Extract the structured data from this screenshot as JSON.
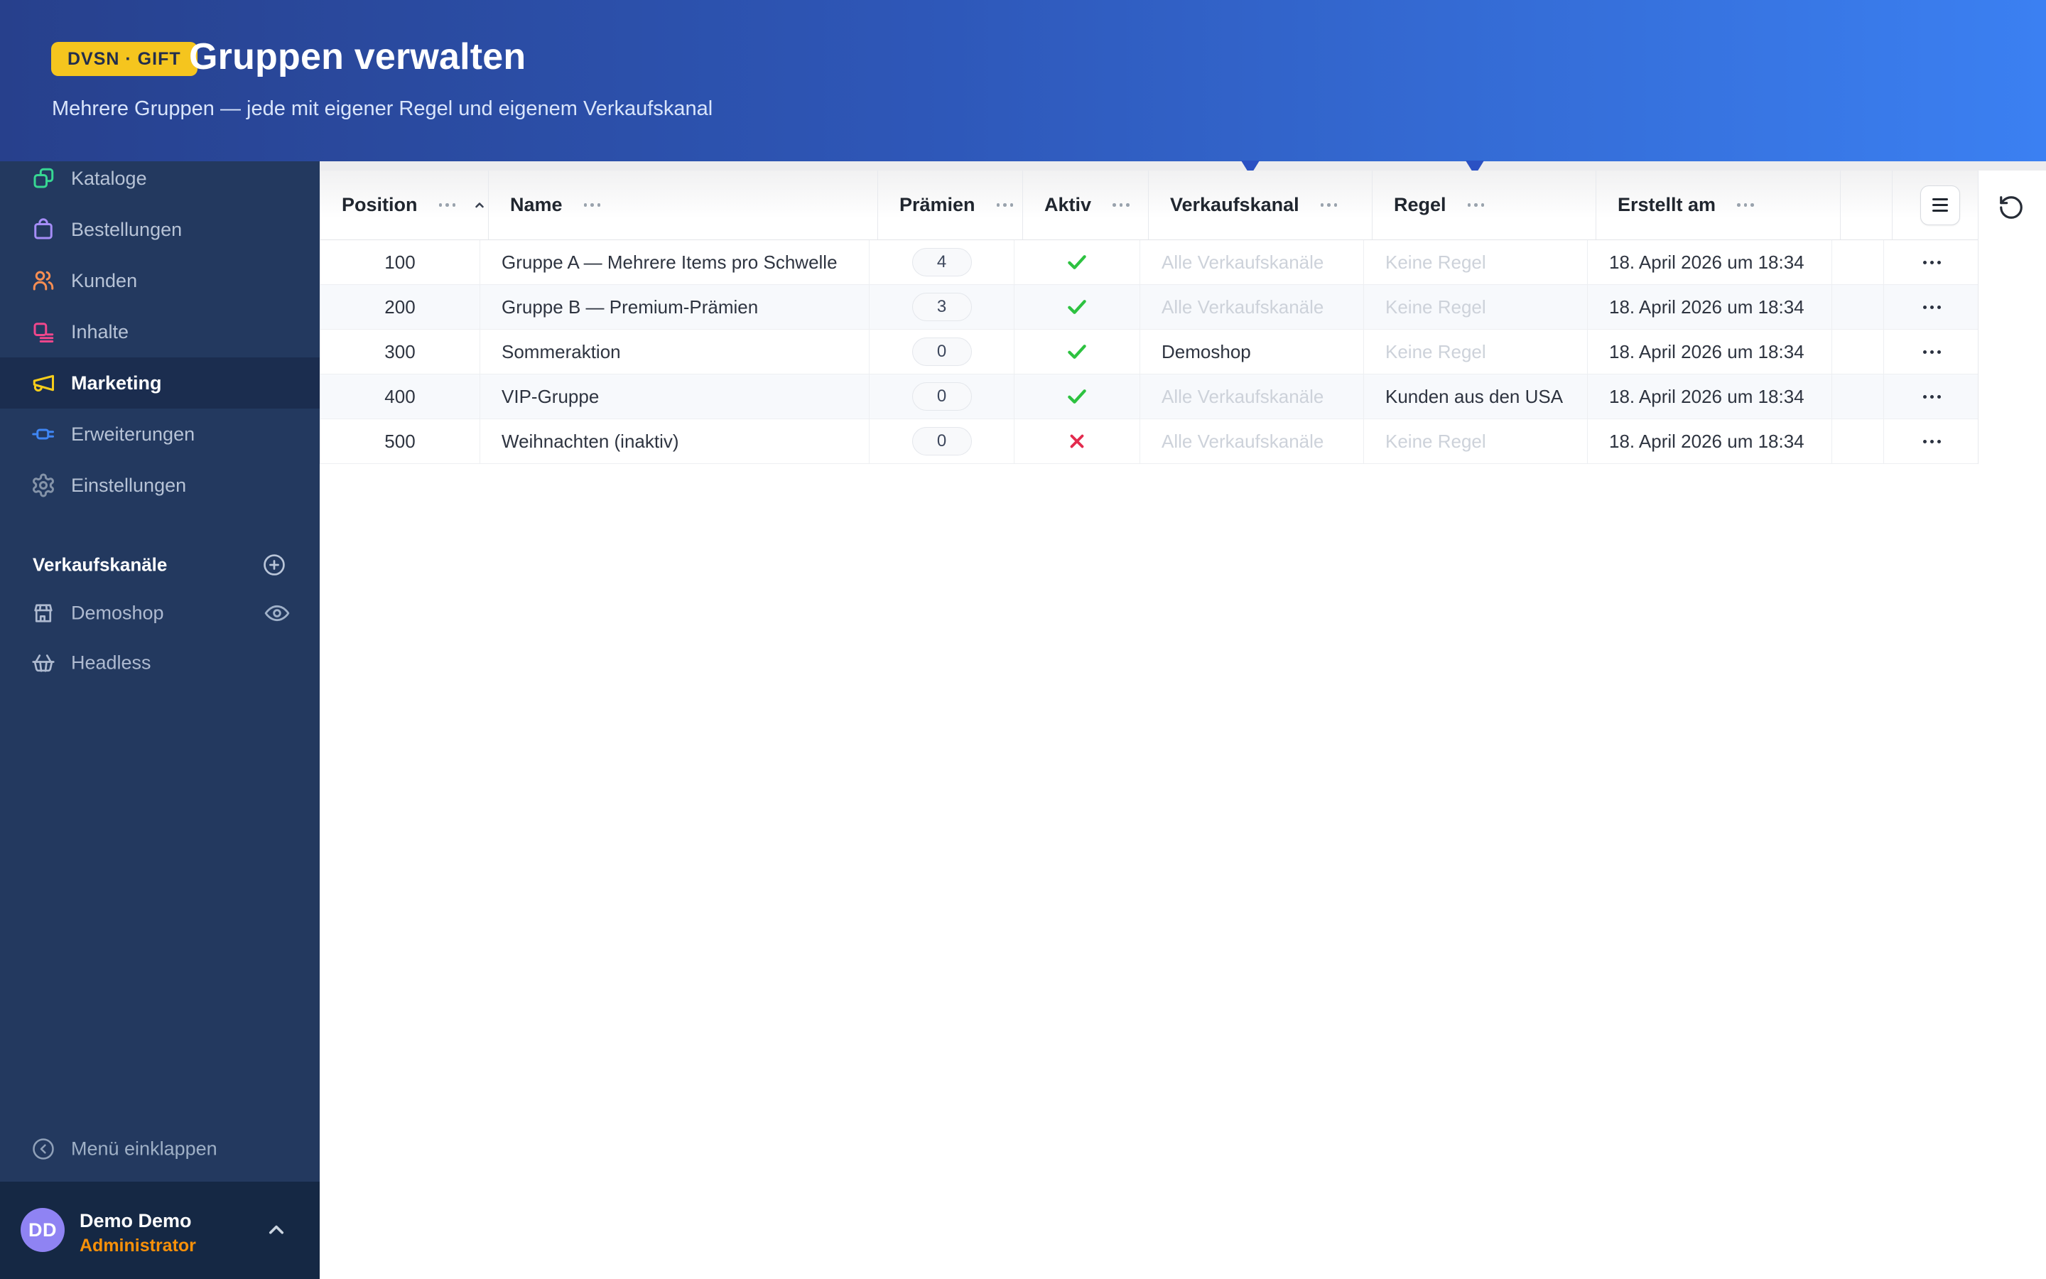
{
  "hero": {
    "badge": "DVSN · GIFT",
    "title": "Gruppen verwalten",
    "subtitle": "Mehrere Gruppen — jede mit eigener Regel und eigenem Verkaufskanal"
  },
  "sidebar": {
    "items": [
      {
        "label": "Kataloge",
        "icon": "copy-icon"
      },
      {
        "label": "Bestellungen",
        "icon": "shopping-bag-icon"
      },
      {
        "label": "Kunden",
        "icon": "users-icon"
      },
      {
        "label": "Inhalte",
        "icon": "content-icon"
      },
      {
        "label": "Marketing",
        "icon": "megaphone-icon",
        "active": true
      },
      {
        "label": "Erweiterungen",
        "icon": "plug-icon"
      },
      {
        "label": "Einstellungen",
        "icon": "gear-icon"
      }
    ],
    "sales_channels_heading": "Verkaufskanäle",
    "add_channel_icon": "plus-circle-icon",
    "channels": [
      {
        "label": "Demoshop",
        "icon": "storefront-icon",
        "trailing_icon": "eye-icon"
      },
      {
        "label": "Headless",
        "icon": "basket-icon"
      }
    ],
    "collapse_label": "Menü einklappen",
    "collapse_icon": "chevron-left-circle-icon"
  },
  "user": {
    "initials": "DD",
    "name": "Demo Demo",
    "role": "Administrator",
    "chevron_icon": "chevron-up-icon"
  },
  "table": {
    "columns": [
      "Position",
      "Name",
      "Prämien",
      "Aktiv",
      "Verkaufskanal",
      "Regel",
      "Erstellt am"
    ],
    "sorted_column": "Position",
    "sort_direction": "ascending",
    "column_menu_icon": "ellipsis-icon",
    "config_button_icon": "list-icon",
    "refresh_icon": "rotate-ccw-icon",
    "row_action_icon": "kebab-icon",
    "rows": [
      {
        "position": "100",
        "name": "Gruppe A — Mehrere Items pro Schwelle",
        "premiums": "4",
        "active": true,
        "channel": "Alle Verkaufskanäle",
        "channel_muted": true,
        "rule": "Keine Regel",
        "rule_muted": true,
        "created": "18. April 2026 um 18:34"
      },
      {
        "position": "200",
        "name": "Gruppe B — Premium-Prämien",
        "premiums": "3",
        "active": true,
        "channel": "Alle Verkaufskanäle",
        "channel_muted": true,
        "rule": "Keine Regel",
        "rule_muted": true,
        "created": "18. April 2026 um 18:34"
      },
      {
        "position": "300",
        "name": "Sommeraktion",
        "premiums": "0",
        "active": true,
        "channel": "Demoshop",
        "channel_muted": false,
        "rule": "Keine Regel",
        "rule_muted": true,
        "created": "18. April 2026 um 18:34"
      },
      {
        "position": "400",
        "name": "VIP-Gruppe",
        "premiums": "0",
        "active": true,
        "channel": "Alle Verkaufskanäle",
        "channel_muted": true,
        "rule": "Kunden aus den USA",
        "rule_muted": false,
        "created": "18. April 2026 um 18:34"
      },
      {
        "position": "500",
        "name": "Weihnachten (inaktiv)",
        "premiums": "0",
        "active": false,
        "channel": "Alle Verkaufskanäle",
        "channel_muted": true,
        "rule": "Keine Regel",
        "rule_muted": true,
        "created": "18. April 2026 um 18:34"
      }
    ]
  },
  "colors": {
    "hero_gradient_start": "#27408c",
    "hero_gradient_end": "#3b80f2",
    "badge_bg": "#f5c51e",
    "sidebar_bg": "#23395f",
    "sidebar_active_bg": "#1b2d4f",
    "userbar_bg": "#152844",
    "avatar_bg": "#8f83f3",
    "role_orange": "#f79009",
    "check_green": "#2dc240",
    "cross_red": "#e32b4e",
    "row_stripe": "#f7f9fc",
    "muted_text": "#cdd2da",
    "header_pointer_blue": "#2b51c3"
  }
}
